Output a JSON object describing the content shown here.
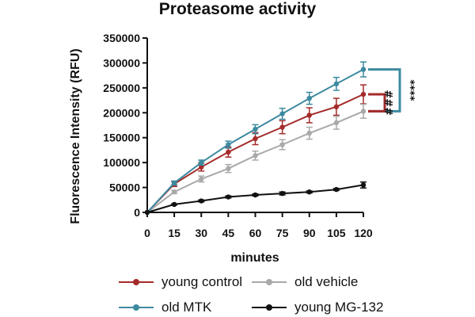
{
  "chart_data": {
    "type": "line",
    "title": "Proteasome activity",
    "xlabel": "minutes",
    "ylabel": "Fluorescence Intensity (RFU)",
    "x": [
      0,
      15,
      30,
      45,
      60,
      75,
      90,
      105,
      120
    ],
    "xlim": [
      0,
      120
    ],
    "ylim": [
      0,
      350000
    ],
    "y_ticks": [
      "0",
      "50000",
      "100000",
      "150000",
      "200000",
      "250000",
      "300000",
      "350000"
    ],
    "y_tick_values": [
      0,
      50000,
      100000,
      150000,
      200000,
      250000,
      300000,
      350000
    ],
    "x_ticks": [
      "0",
      "15",
      "30",
      "45",
      "60",
      "75",
      "90",
      "105",
      "120"
    ],
    "grid": false,
    "legend_placement": "bottom",
    "series": [
      {
        "name": "young control",
        "color": "#a52a2a",
        "values": [
          0,
          57000,
          91000,
          121000,
          148000,
          171000,
          195000,
          212000,
          237000
        ],
        "errors": [
          0,
          5000,
          8000,
          10000,
          12000,
          13000,
          15000,
          17000,
          19000
        ]
      },
      {
        "name": "old vehicle",
        "color": "#a9a9a9",
        "values": [
          0,
          41000,
          67000,
          88000,
          114000,
          136000,
          159000,
          180000,
          203000
        ],
        "errors": [
          0,
          3000,
          6000,
          8000,
          9000,
          10000,
          12000,
          13000,
          14000
        ]
      },
      {
        "name": "old MTK",
        "color": "#3d8aa0",
        "values": [
          0,
          59000,
          100000,
          136000,
          167000,
          198000,
          229000,
          258000,
          287000
        ],
        "errors": [
          0,
          4000,
          5000,
          7000,
          9000,
          11000,
          12000,
          13000,
          15000
        ]
      },
      {
        "name": "young MG-132",
        "color": "#111111",
        "values": [
          0,
          16000,
          23000,
          31000,
          35000,
          38000,
          41000,
          46000,
          55000
        ],
        "errors": [
          0,
          1000,
          2000,
          2000,
          2000,
          3000,
          2000,
          2000,
          6000
        ]
      }
    ],
    "annotations": [
      {
        "text": "****",
        "color": "#3d8aa0",
        "from_series": "old MTK",
        "to_series": "old vehicle"
      },
      {
        "text": "###",
        "color": "#a52a2a",
        "from_series": "young control",
        "to_series": "old vehicle"
      }
    ]
  },
  "legend_items": [
    {
      "label": "young control",
      "color": "#a52a2a"
    },
    {
      "label": "old vehicle",
      "color": "#a9a9a9"
    },
    {
      "label": "old MTK",
      "color": "#3d8aa0"
    },
    {
      "label": "young MG-132",
      "color": "#111111"
    }
  ]
}
